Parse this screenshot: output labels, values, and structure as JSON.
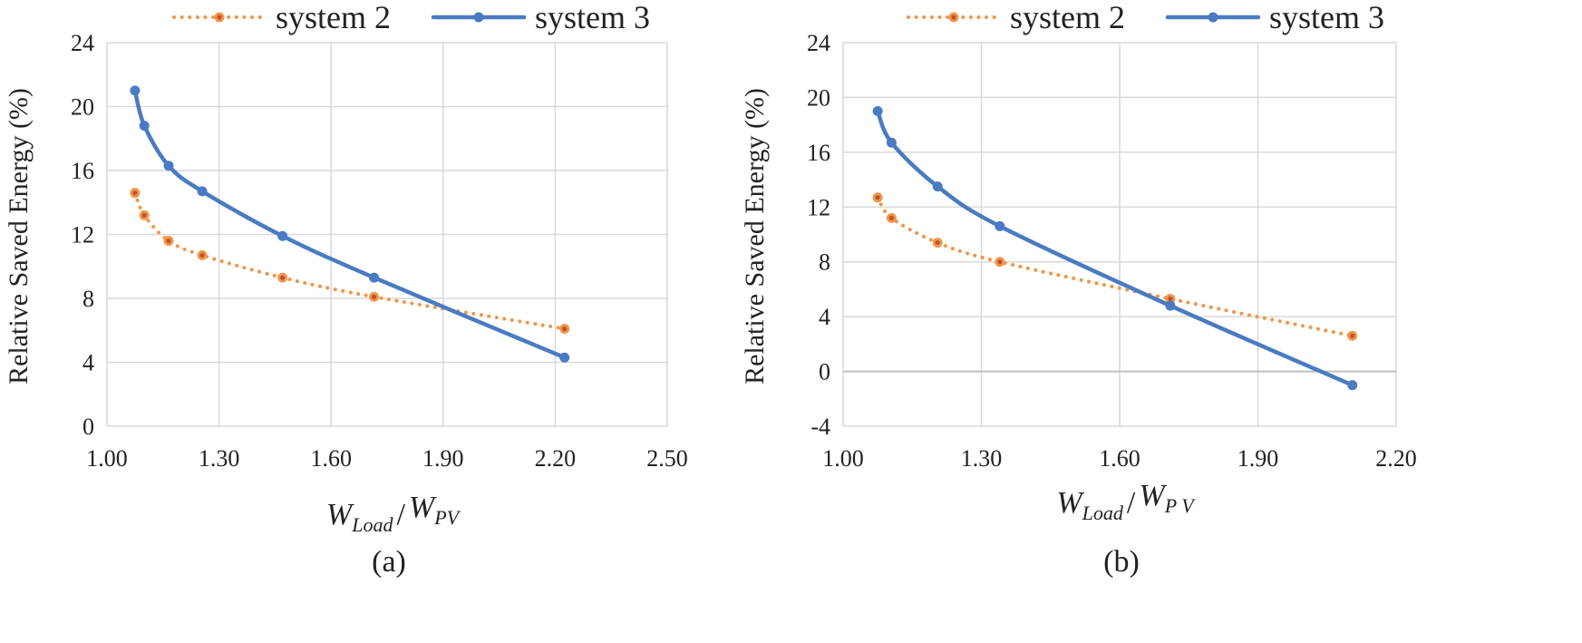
{
  "colors": {
    "system2": "#f0964a",
    "system3": "#4a7bc2",
    "grid": "#d9d9d9",
    "zero_line": "#bfbfbf"
  },
  "chart_data": [
    {
      "type": "line",
      "panel_label": "(a)",
      "ylabel": "Relative Saved Energy (%)",
      "xlabel": {
        "main1": "W",
        "sub1": "Load",
        "sep": "/",
        "main2": "W",
        "sub2": "PV"
      },
      "xlim": [
        1.0,
        2.5
      ],
      "ylim": [
        0,
        24
      ],
      "x_ticks": [
        "1.00",
        "1.30",
        "1.60",
        "1.90",
        "2.20",
        "2.50"
      ],
      "y_ticks": [
        "0",
        "4",
        "8",
        "12",
        "16",
        "20",
        "24"
      ],
      "legend": [
        "system 2",
        "system 3"
      ],
      "series": [
        {
          "name": "system 2",
          "style": "dotted",
          "x": [
            1.075,
            1.1,
            1.165,
            1.255,
            1.47,
            1.715,
            2.225
          ],
          "y": [
            14.6,
            13.2,
            11.6,
            10.7,
            9.3,
            8.1,
            6.1
          ]
        },
        {
          "name": "system 3",
          "style": "solid",
          "x": [
            1.075,
            1.1,
            1.165,
            1.255,
            1.47,
            1.715,
            2.225
          ],
          "y": [
            21.0,
            18.8,
            16.3,
            14.7,
            11.9,
            9.3,
            4.3
          ]
        }
      ]
    },
    {
      "type": "line",
      "panel_label": "(b)",
      "ylabel": "Relative Saved Energy (%)",
      "xlabel": {
        "main1": "W",
        "sub1": "Load",
        "sep": "/",
        "main2": "W",
        "sub2": "P V"
      },
      "xlim": [
        1.0,
        2.2
      ],
      "ylim": [
        -4,
        24
      ],
      "x_ticks": [
        "1.00",
        "1.30",
        "1.60",
        "1.90",
        "2.20"
      ],
      "y_ticks": [
        "-4",
        "0",
        "4",
        "8",
        "12",
        "16",
        "20",
        "24"
      ],
      "legend": [
        "system 2",
        "system 3"
      ],
      "series": [
        {
          "name": "system 2",
          "style": "dotted",
          "x": [
            1.075,
            1.105,
            1.205,
            1.34,
            1.71,
            2.105
          ],
          "y": [
            12.7,
            11.2,
            9.4,
            8.0,
            5.3,
            2.6
          ]
        },
        {
          "name": "system 3",
          "style": "solid",
          "x": [
            1.075,
            1.105,
            1.205,
            1.34,
            1.71,
            2.105
          ],
          "y": [
            19.0,
            16.7,
            13.5,
            10.6,
            4.8,
            -1.0
          ]
        }
      ]
    }
  ]
}
